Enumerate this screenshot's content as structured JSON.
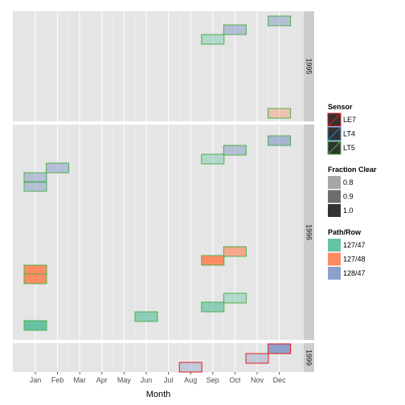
{
  "chart_data": {
    "type": "tile",
    "xlabel": "Month",
    "months": [
      "Jan",
      "Feb",
      "Mar",
      "Apr",
      "May",
      "Jun",
      "Jul",
      "Aug",
      "Sep",
      "Oct",
      "Nov",
      "Dec"
    ],
    "panels": [
      {
        "label": "1995",
        "tiles": [
          {
            "month": "Dec",
            "path_row": "128/47",
            "sensor": "LT5",
            "fraction_clear": 0.85
          },
          {
            "month": "Oct",
            "path_row": "128/47",
            "sensor": "LT5",
            "fraction_clear": 0.85
          },
          {
            "month": "Sep",
            "path_row": "127/47",
            "sensor": "LT5",
            "fraction_clear": 0.8
          },
          {
            "month": "Dec",
            "path_row": "127/48",
            "sensor": "LT5",
            "fraction_clear": 0.8
          }
        ]
      },
      {
        "label": "1996",
        "tiles": [
          {
            "month": "Dec",
            "path_row": "128/47",
            "sensor": "LT5",
            "fraction_clear": 0.9
          },
          {
            "month": "Oct",
            "path_row": "128/47",
            "sensor": "LT5",
            "fraction_clear": 0.85
          },
          {
            "month": "Sep",
            "path_row": "127/47",
            "sensor": "LT5",
            "fraction_clear": 0.8
          },
          {
            "month": "Feb",
            "path_row": "128/47",
            "sensor": "LT5",
            "fraction_clear": 0.85
          },
          {
            "month": "Jan",
            "path_row": "128/47",
            "sensor": "LT5",
            "fraction_clear": 0.85
          },
          {
            "month": "Jan",
            "path_row": "128/47",
            "sensor": "LT5",
            "fraction_clear": 0.85
          },
          {
            "month": "Oct",
            "path_row": "127/48",
            "sensor": "LT5",
            "fraction_clear": 0.9
          },
          {
            "month": "Sep",
            "path_row": "127/48",
            "sensor": "LT5",
            "fraction_clear": 1.0
          },
          {
            "month": "Jan",
            "path_row": "127/48",
            "sensor": "LT5",
            "fraction_clear": 1.0
          },
          {
            "month": "Jan",
            "path_row": "127/48",
            "sensor": "LT5",
            "fraction_clear": 1.0
          },
          {
            "month": "Oct",
            "path_row": "127/47",
            "sensor": "LT5",
            "fraction_clear": 0.8
          },
          {
            "month": "Sep",
            "path_row": "127/47",
            "sensor": "LT5",
            "fraction_clear": 0.9
          },
          {
            "month": "Jun",
            "path_row": "127/47",
            "sensor": "LT5",
            "fraction_clear": 0.9
          },
          {
            "month": "Jan",
            "path_row": "127/47",
            "sensor": "LT5",
            "fraction_clear": 1.0
          }
        ]
      },
      {
        "label": "1999",
        "tiles": [
          {
            "month": "Dec",
            "path_row": "128/47",
            "sensor": "LE7",
            "fraction_clear": 1.0
          },
          {
            "month": "Nov",
            "path_row": "128/47",
            "sensor": "LE7",
            "fraction_clear": 0.8
          },
          {
            "month": "Aug",
            "path_row": "128/47",
            "sensor": "LE7",
            "fraction_clear": 0.8
          }
        ]
      }
    ],
    "legends": [
      {
        "title": "Sensor",
        "items": [
          "LE7",
          "LT4",
          "LT5"
        ],
        "colors": [
          "#E41A1C",
          "#377EB8",
          "#4DAF4A"
        ]
      },
      {
        "title": "Fraction Clear",
        "items": [
          "0.8",
          "0.9",
          "1.0"
        ],
        "colors": [
          "#A6A6A6",
          "#6E6E6E",
          "#333333"
        ]
      },
      {
        "title": "Path/Row",
        "items": [
          "127/47",
          "127/48",
          "128/47"
        ],
        "colors": [
          "#66C2A5",
          "#FC8D62",
          "#8DA0CB"
        ]
      }
    ],
    "legend_position": "right",
    "grid": true,
    "panel_background": "#E5E5E5",
    "strip_background": "#CCCCCC"
  }
}
